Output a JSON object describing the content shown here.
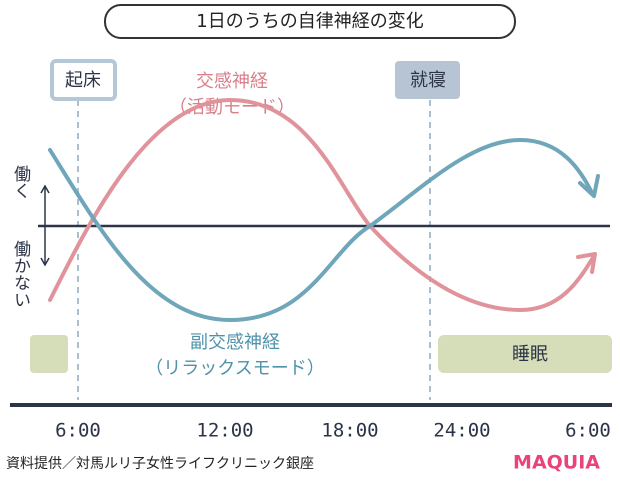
{
  "title": "1日のうちの自律神経の変化",
  "wake": "起床",
  "sleep_time": "就寝",
  "sympathetic": {
    "name": "交感神経",
    "mode": "（活動モード）"
  },
  "parasympathetic": {
    "name": "副交感神経",
    "mode": "（リラックスモード）"
  },
  "active": "働く",
  "inactive": "働かない",
  "sleep": "睡眠",
  "times": [
    "6:00",
    "12:00",
    "18:00",
    "24:00",
    "6:00"
  ],
  "source": "資料提供／対馬ルリ子女性ライフクリニック銀座",
  "brand": "MAQUIA"
}
